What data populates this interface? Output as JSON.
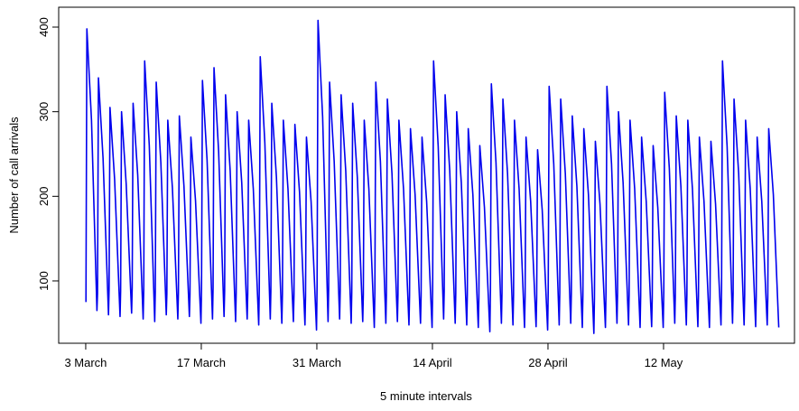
{
  "chart_data": {
    "type": "line",
    "x_label": "5 minute intervals",
    "y_label": "Number of call arrivals",
    "xlim": [
      -2.34,
      61.33
    ],
    "ylim": [
      26.3,
      423.5
    ],
    "xticks": [
      {
        "value": 0,
        "label": "3 March"
      },
      {
        "value": 10,
        "label": "17 March"
      },
      {
        "value": 20,
        "label": "31 March"
      },
      {
        "value": 30,
        "label": "14 April"
      },
      {
        "value": 40,
        "label": "28 April"
      },
      {
        "value": 50,
        "label": "12 May"
      }
    ],
    "yticks": [
      100,
      200,
      300,
      400
    ],
    "series": [
      {
        "color": "#0000ee",
        "x": [
          0.02,
          0.1,
          0.5,
          0.97,
          1.02,
          1.1,
          1.5,
          1.97,
          2.02,
          2.1,
          2.5,
          2.97,
          3.02,
          3.1,
          3.5,
          3.97,
          4.02,
          4.1,
          4.5,
          4.97,
          5.02,
          5.1,
          5.5,
          5.97,
          6.02,
          6.1,
          6.5,
          6.97,
          7.02,
          7.1,
          7.5,
          7.97,
          8.02,
          8.1,
          8.5,
          8.97,
          9.02,
          9.1,
          9.5,
          9.97,
          10.02,
          10.1,
          10.5,
          10.97,
          11.02,
          11.1,
          11.5,
          11.97,
          12.02,
          12.1,
          12.5,
          12.97,
          13.02,
          13.1,
          13.5,
          13.97,
          14.02,
          14.1,
          14.5,
          14.97,
          15.02,
          15.1,
          15.5,
          15.97,
          16.02,
          16.1,
          16.5,
          16.97,
          17.02,
          17.1,
          17.5,
          17.97,
          18.02,
          18.1,
          18.5,
          18.97,
          19.02,
          19.1,
          19.5,
          19.97,
          20.02,
          20.1,
          20.5,
          20.97,
          21.02,
          21.1,
          21.5,
          21.97,
          22.02,
          22.1,
          22.5,
          22.97,
          23.02,
          23.1,
          23.5,
          23.97,
          24.02,
          24.1,
          24.5,
          24.97,
          25.02,
          25.1,
          25.5,
          25.97,
          26.02,
          26.1,
          26.5,
          26.97,
          27.02,
          27.1,
          27.5,
          27.97,
          28.02,
          28.1,
          28.5,
          28.97,
          29.02,
          29.1,
          29.5,
          29.97,
          30.02,
          30.1,
          30.5,
          30.97,
          31.02,
          31.1,
          31.5,
          31.97,
          32.02,
          32.1,
          32.5,
          32.97,
          33.02,
          33.1,
          33.5,
          33.97,
          34.02,
          34.1,
          34.5,
          34.97,
          35.02,
          35.1,
          35.5,
          35.97,
          36.02,
          36.1,
          36.5,
          36.97,
          37.02,
          37.1,
          37.5,
          37.97,
          38.02,
          38.1,
          38.5,
          38.97,
          39.02,
          39.1,
          39.5,
          39.97,
          40.02,
          40.1,
          40.5,
          40.97,
          41.02,
          41.1,
          41.5,
          41.97,
          42.02,
          42.1,
          42.5,
          42.97,
          43.02,
          43.1,
          43.5,
          43.97,
          44.02,
          44.1,
          44.5,
          44.97,
          45.02,
          45.1,
          45.5,
          45.97,
          46.02,
          46.1,
          46.5,
          46.97,
          47.02,
          47.1,
          47.5,
          47.97,
          48.02,
          48.1,
          48.5,
          48.97,
          49.02,
          49.1,
          49.5,
          49.97,
          50.02,
          50.1,
          50.5,
          50.97,
          51.02,
          51.1,
          51.5,
          51.97,
          52.02,
          52.1,
          52.5,
          52.97,
          53.02,
          53.1,
          53.5,
          53.97,
          54.02,
          54.1,
          54.5,
          54.97,
          55.02,
          55.1,
          55.5,
          55.97,
          56.02,
          56.1,
          56.5,
          56.97,
          57.02,
          57.1,
          57.5,
          57.97,
          58.02,
          58.1,
          58.5,
          58.97,
          59.02,
          59.1,
          59.5,
          59.97
        ],
        "values": [
          75,
          398,
          290,
          65,
          85,
          340,
          245,
          60,
          90,
          305,
          220,
          58,
          88,
          300,
          215,
          62,
          92,
          310,
          225,
          55,
          90,
          360,
          260,
          52,
          88,
          335,
          240,
          60,
          85,
          290,
          210,
          55,
          86,
          295,
          212,
          58,
          84,
          270,
          195,
          50,
          90,
          337,
          243,
          55,
          92,
          352,
          253,
          58,
          88,
          320,
          230,
          52,
          86,
          300,
          216,
          55,
          85,
          290,
          209,
          48,
          92,
          365,
          263,
          55,
          88,
          310,
          223,
          50,
          85,
          290,
          209,
          52,
          84,
          285,
          205,
          48,
          82,
          270,
          194,
          42,
          95,
          408,
          294,
          52,
          90,
          335,
          241,
          55,
          88,
          320,
          230,
          50,
          86,
          310,
          223,
          52,
          84,
          290,
          209,
          45,
          88,
          335,
          241,
          50,
          86,
          315,
          227,
          52,
          84,
          290,
          209,
          48,
          83,
          280,
          202,
          50,
          82,
          270,
          194,
          45,
          90,
          360,
          259,
          55,
          88,
          320,
          230,
          50,
          85,
          300,
          216,
          48,
          84,
          280,
          202,
          45,
          80,
          260,
          187,
          40,
          88,
          333,
          240,
          50,
          86,
          315,
          227,
          48,
          84,
          290,
          209,
          45,
          82,
          270,
          194,
          46,
          80,
          255,
          184,
          42,
          88,
          330,
          238,
          48,
          86,
          315,
          227,
          50,
          85,
          295,
          212,
          45,
          83,
          280,
          202,
          38,
          80,
          265,
          191,
          45,
          88,
          330,
          238,
          50,
          86,
          300,
          216,
          48,
          84,
          290,
          209,
          45,
          82,
          270,
          194,
          46,
          80,
          260,
          187,
          45,
          88,
          323,
          233,
          50,
          85,
          295,
          212,
          48,
          84,
          290,
          209,
          46,
          82,
          270,
          194,
          45,
          80,
          265,
          191,
          48,
          90,
          360,
          259,
          50,
          86,
          315,
          227,
          48,
          84,
          290,
          209,
          46,
          82,
          270,
          194,
          48,
          80,
          280,
          202,
          45
        ]
      }
    ]
  }
}
